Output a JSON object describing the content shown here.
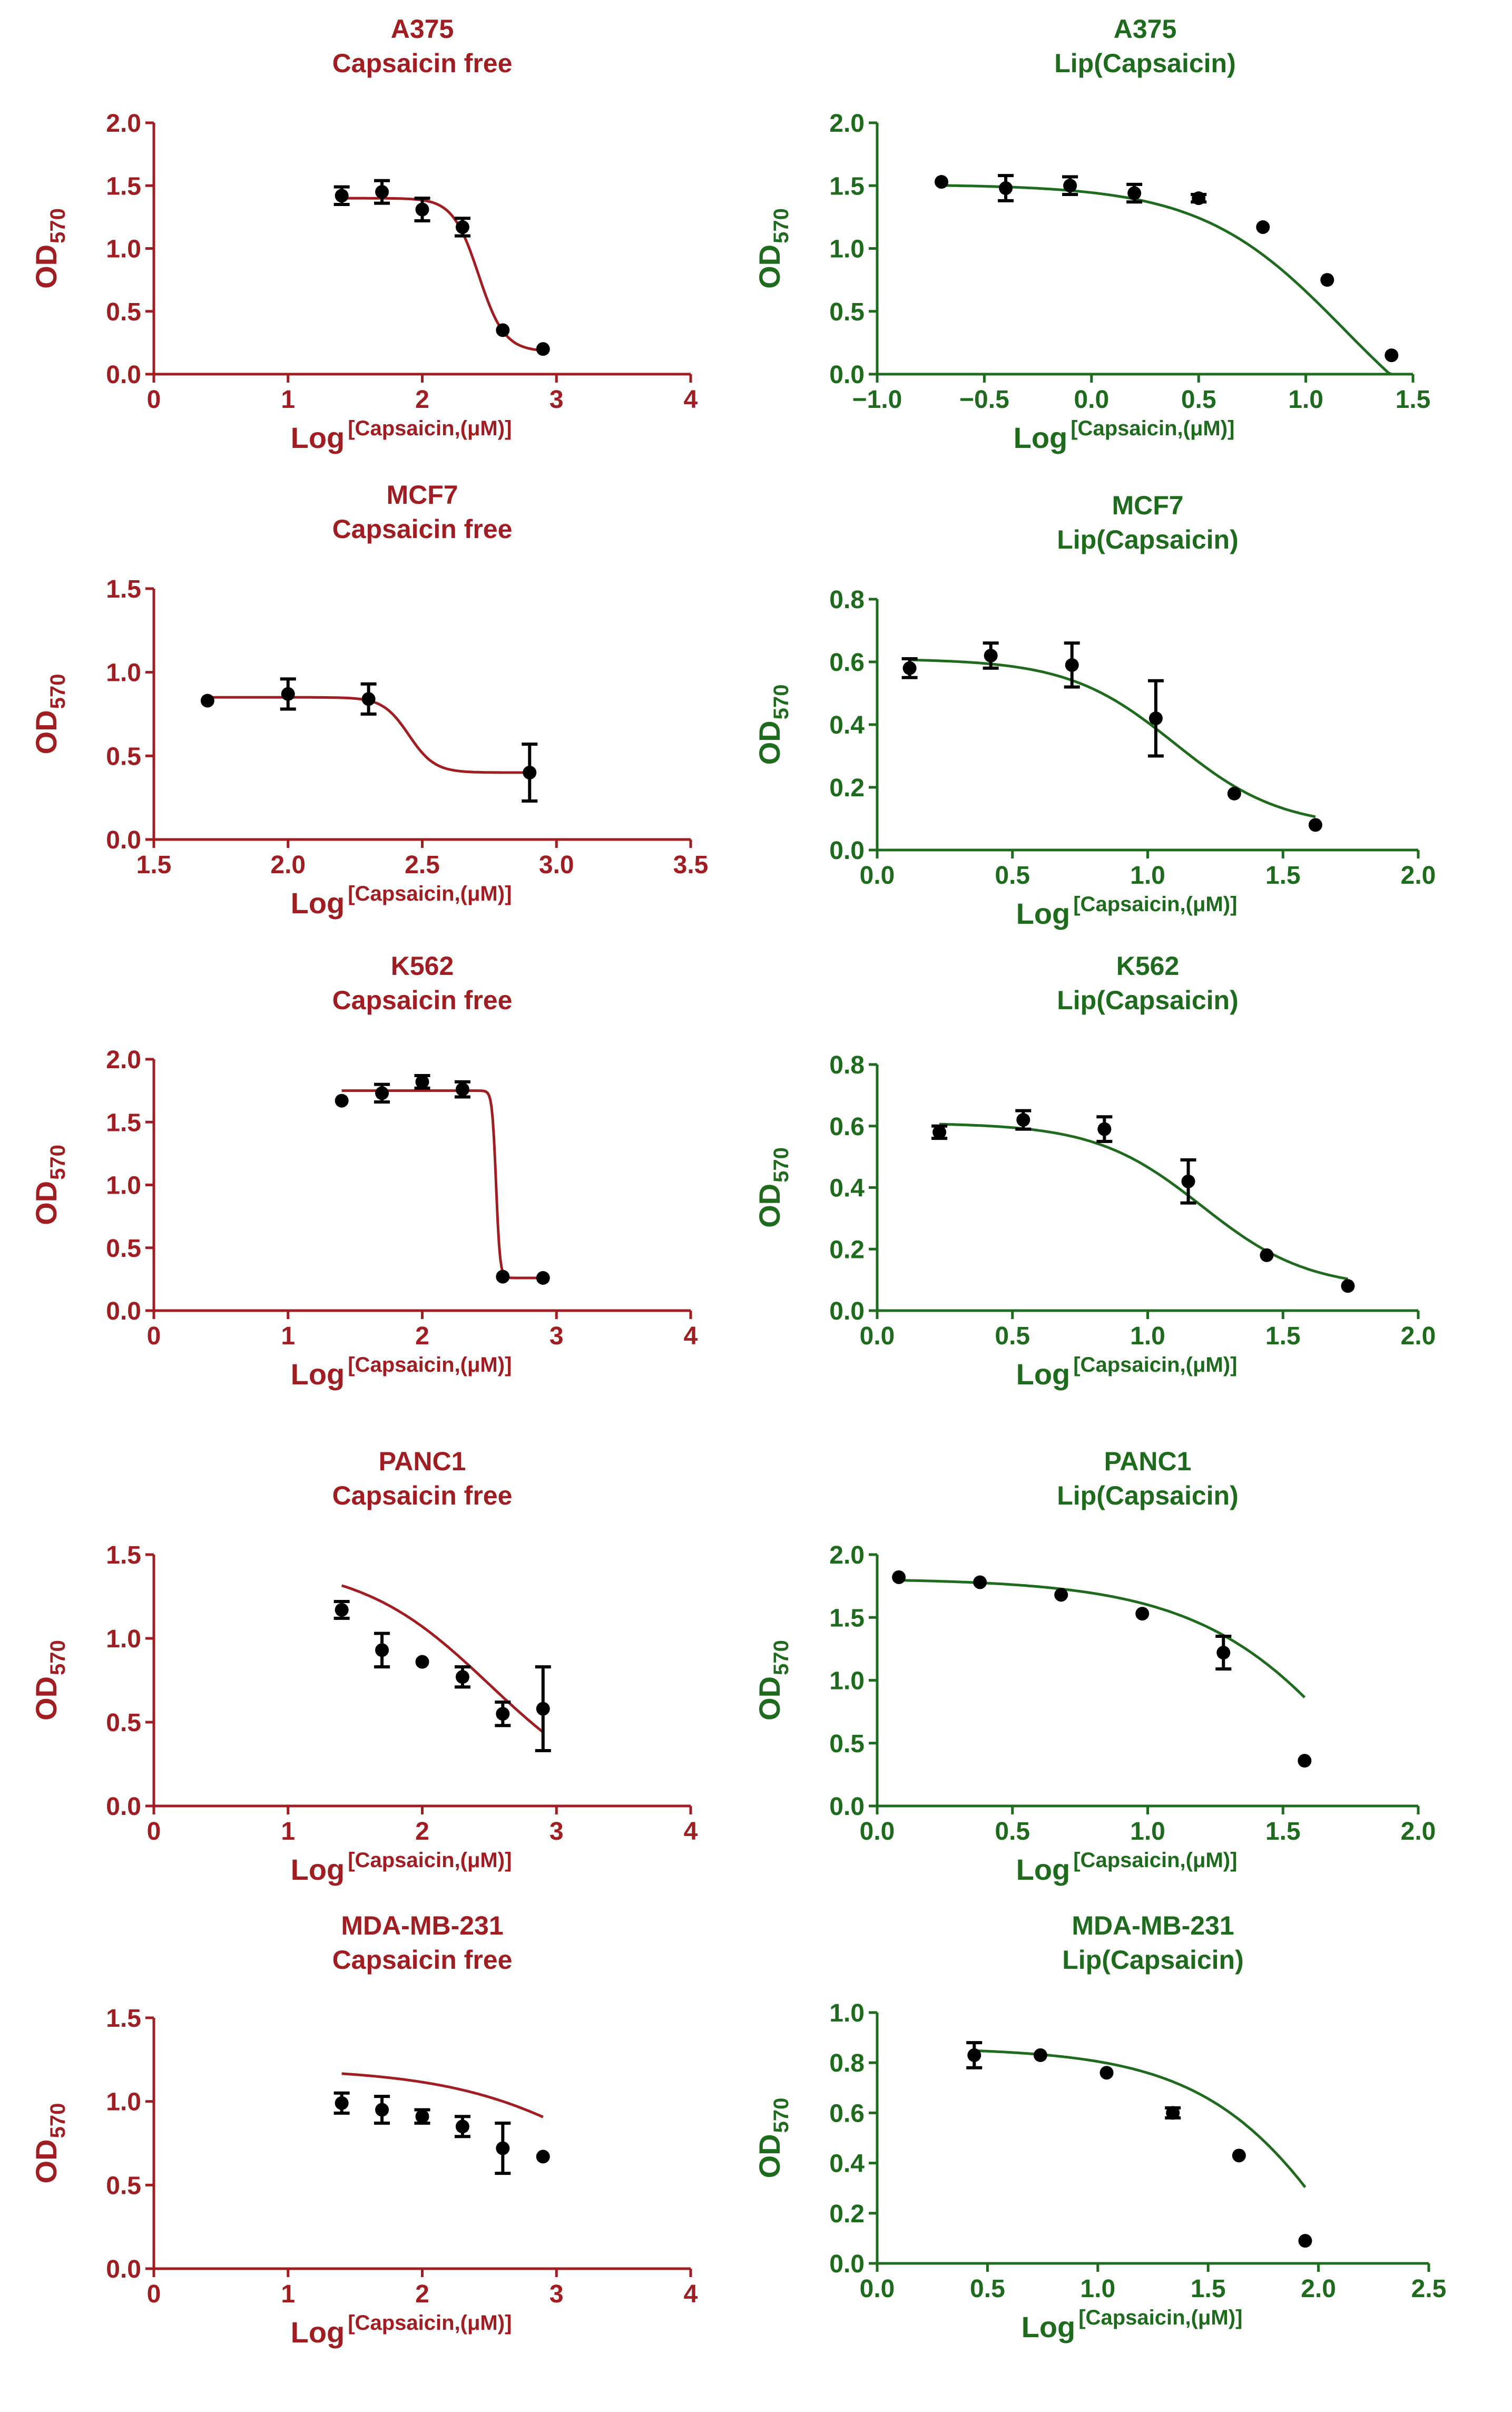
{
  "colors": {
    "free": "#a01d22",
    "lip": "#1e6b1e",
    "marker": "#000000"
  },
  "chart_data": [
    {
      "id": "a375-free",
      "type": "line",
      "title": [
        "A375",
        "Capsaicin free"
      ],
      "ylabel": {
        "main": "OD",
        "sub": "570"
      },
      "xlabel": {
        "main": "Log",
        "sup": "[Capsaicin,(μM)]"
      },
      "xlim": [
        0,
        4
      ],
      "ylim": [
        0,
        2
      ],
      "xticks": [
        0,
        1,
        2,
        3,
        4
      ],
      "xtick_labels": [
        "0",
        "1",
        "2",
        "3",
        "4"
      ],
      "yticks": [
        0,
        0.5,
        1,
        1.5,
        2
      ],
      "ytick_labels": [
        "0.0",
        "0.5",
        "1.0",
        "1.5",
        "2.0"
      ],
      "x": [
        1.4,
        1.7,
        2.0,
        2.3,
        2.6,
        2.9
      ],
      "y": [
        1.42,
        1.45,
        1.31,
        1.17,
        0.35,
        0.2
      ],
      "err": [
        0.07,
        0.09,
        0.09,
        0.07,
        0.02,
        0.02
      ],
      "fit": {
        "top": 1.4,
        "bottom": 0.18,
        "logec50": 2.42,
        "hill": -4.5,
        "xmin": 1.4,
        "xmax": 2.9
      }
    },
    {
      "id": "a375-lip",
      "type": "line",
      "title": [
        "A375",
        "Lip(Capsaicin)"
      ],
      "ylabel": {
        "main": "OD",
        "sub": "570"
      },
      "xlabel": {
        "main": "Log",
        "sup": "[Capsaicin,(μM)]"
      },
      "xlim": [
        -1,
        1.5
      ],
      "ylim": [
        0,
        2
      ],
      "xticks": [
        -1,
        -0.5,
        0,
        0.5,
        1,
        1.5
      ],
      "xtick_labels": [
        "−1.0",
        "−0.5",
        "0.0",
        "0.5",
        "1.0",
        "1.5"
      ],
      "yticks": [
        0,
        0.5,
        1,
        1.5,
        2
      ],
      "ytick_labels": [
        "0.0",
        "0.5",
        "1.0",
        "1.5",
        "2.0"
      ],
      "x": [
        -0.7,
        -0.4,
        -0.1,
        0.2,
        0.5,
        0.8,
        1.1,
        1.4
      ],
      "y": [
        1.53,
        1.48,
        1.5,
        1.44,
        1.4,
        1.17,
        0.75,
        0.15
      ],
      "err": [
        0.01,
        0.1,
        0.07,
        0.07,
        0.03,
        0.01,
        0.01,
        0.01
      ],
      "fit": {
        "top": 1.51,
        "bottom": -0.8,
        "logec50": 1.18,
        "hill": -1.3,
        "xmin": -0.7,
        "xmax": 1.4
      }
    },
    {
      "id": "mcf7-free",
      "type": "line",
      "title": [
        "MCF7",
        "Capsaicin free"
      ],
      "ylabel": {
        "main": "OD",
        "sub": "570"
      },
      "xlabel": {
        "main": "Log",
        "sup": "[Capsaicin,(μM)]"
      },
      "xlim": [
        1.5,
        3.5
      ],
      "ylim": [
        0,
        1.5
      ],
      "xticks": [
        1.5,
        2,
        2.5,
        3,
        3.5
      ],
      "xtick_labels": [
        "1.5",
        "2.0",
        "2.5",
        "3.0",
        "3.5"
      ],
      "yticks": [
        0,
        0.5,
        1,
        1.5
      ],
      "ytick_labels": [
        "0.0",
        "0.5",
        "1.0",
        "1.5"
      ],
      "x": [
        1.7,
        2.0,
        2.3,
        2.9
      ],
      "y": [
        0.83,
        0.87,
        0.84,
        0.4
      ],
      "err": [
        0.01,
        0.09,
        0.09,
        0.17
      ],
      "fit": {
        "top": 0.85,
        "bottom": 0.4,
        "logec50": 2.45,
        "hill": -9,
        "xmin": 1.7,
        "xmax": 2.9
      }
    },
    {
      "id": "mcf7-lip",
      "type": "line",
      "title": [
        "MCF7",
        "Lip(Capsaicin)"
      ],
      "ylabel": {
        "main": "OD",
        "sub": "570"
      },
      "xlabel": {
        "main": "Log",
        "sup": "[Capsaicin,(μM)]"
      },
      "xlim": [
        0,
        2
      ],
      "ylim": [
        0,
        0.8
      ],
      "xticks": [
        0,
        0.5,
        1,
        1.5,
        2
      ],
      "xtick_labels": [
        "0.0",
        "0.5",
        "1.0",
        "1.5",
        "2.0"
      ],
      "yticks": [
        0,
        0.2,
        0.4,
        0.6,
        0.8
      ],
      "ytick_labels": [
        "0.0",
        "0.2",
        "0.4",
        "0.6",
        "0.8"
      ],
      "x": [
        0.12,
        0.42,
        0.72,
        1.03,
        1.32,
        1.62
      ],
      "y": [
        0.58,
        0.62,
        0.59,
        0.42,
        0.18,
        0.08
      ],
      "err": [
        0.03,
        0.04,
        0.07,
        0.12,
        0.01,
        0.01
      ],
      "fit": {
        "top": 0.61,
        "bottom": 0.07,
        "logec50": 1.1,
        "hill": -2.2,
        "xmin": 0.12,
        "xmax": 1.62
      }
    },
    {
      "id": "k562-free",
      "type": "line",
      "title": [
        "K562",
        "Capsaicin free"
      ],
      "ylabel": {
        "main": "OD",
        "sub": "570"
      },
      "xlabel": {
        "main": "Log",
        "sup": "[Capsaicin,(μM)]"
      },
      "xlim": [
        0,
        4
      ],
      "ylim": [
        0,
        2
      ],
      "xticks": [
        0,
        1,
        2,
        3,
        4
      ],
      "xtick_labels": [
        "0",
        "1",
        "2",
        "3",
        "4"
      ],
      "yticks": [
        0,
        0.5,
        1,
        1.5,
        2
      ],
      "ytick_labels": [
        "0.0",
        "0.5",
        "1.0",
        "1.5",
        "2.0"
      ],
      "x": [
        1.4,
        1.7,
        2.0,
        2.3,
        2.6,
        2.9
      ],
      "y": [
        1.67,
        1.73,
        1.82,
        1.76,
        0.27,
        0.26
      ],
      "err": [
        0.01,
        0.07,
        0.05,
        0.06,
        0.01,
        0.01
      ],
      "fit": {
        "top": 1.75,
        "bottom": 0.26,
        "logec50": 2.55,
        "hill": -30,
        "xmin": 1.4,
        "xmax": 2.9
      }
    },
    {
      "id": "k562-lip",
      "type": "line",
      "title": [
        "K562",
        "Lip(Capsaicin)"
      ],
      "ylabel": {
        "main": "OD",
        "sub": "570"
      },
      "xlabel": {
        "main": "Log",
        "sup": "[Capsaicin,(μM)]"
      },
      "xlim": [
        0,
        2
      ],
      "ylim": [
        0,
        0.8
      ],
      "xticks": [
        0,
        0.5,
        1,
        1.5,
        2
      ],
      "xtick_labels": [
        "0.0",
        "0.5",
        "1.0",
        "1.5",
        "2.0"
      ],
      "yticks": [
        0,
        0.2,
        0.4,
        0.6,
        0.8
      ],
      "ytick_labels": [
        "0.0",
        "0.2",
        "0.4",
        "0.6",
        "0.8"
      ],
      "x": [
        0.23,
        0.54,
        0.84,
        1.15,
        1.44,
        1.74
      ],
      "y": [
        0.58,
        0.62,
        0.59,
        0.42,
        0.18,
        0.08
      ],
      "err": [
        0.02,
        0.03,
        0.04,
        0.07,
        0.01,
        0.01
      ],
      "fit": {
        "top": 0.61,
        "bottom": 0.07,
        "logec50": 1.2,
        "hill": -2.2,
        "xmin": 0.23,
        "xmax": 1.74
      }
    },
    {
      "id": "panc1-free",
      "type": "line",
      "title": [
        "PANC1",
        "Capsaicin free"
      ],
      "ylabel": {
        "main": "OD",
        "sub": "570"
      },
      "xlabel": {
        "main": "Log",
        "sup": "[Capsaicin,(μM)]"
      },
      "xlim": [
        0,
        4
      ],
      "ylim": [
        0,
        1.5
      ],
      "xticks": [
        0,
        1,
        2,
        3,
        4
      ],
      "xtick_labels": [
        "0",
        "1",
        "2",
        "3",
        "4"
      ],
      "yticks": [
        0,
        0.5,
        1,
        1.5
      ],
      "ytick_labels": [
        "0.0",
        "0.5",
        "1.0",
        "1.5"
      ],
      "x": [
        1.4,
        1.7,
        2.0,
        2.3,
        2.6,
        2.9
      ],
      "y": [
        1.17,
        0.93,
        0.86,
        0.77,
        0.55,
        0.58
      ],
      "err": [
        0.05,
        0.1,
        0.02,
        0.06,
        0.07,
        0.25
      ],
      "fit": {
        "top": 1.45,
        "bottom": 0.0,
        "logec50": 2.5,
        "hill": -0.9,
        "xmin": 1.4,
        "xmax": 2.9
      }
    },
    {
      "id": "panc1-lip",
      "type": "line",
      "title": [
        "PANC1",
        "Lip(Capsaicin)"
      ],
      "ylabel": {
        "main": "OD",
        "sub": "570"
      },
      "xlabel": {
        "main": "Log",
        "sup": "[Capsaicin,(μM)]"
      },
      "xlim": [
        0,
        2
      ],
      "ylim": [
        0,
        2
      ],
      "xticks": [
        0,
        0.5,
        1,
        1.5,
        2
      ],
      "xtick_labels": [
        "0.0",
        "0.5",
        "1.0",
        "1.5",
        "2.0"
      ],
      "yticks": [
        0,
        0.5,
        1,
        1.5,
        2
      ],
      "ytick_labels": [
        "0.0",
        "0.5",
        "1.0",
        "1.5",
        "2.0"
      ],
      "x": [
        0.08,
        0.38,
        0.68,
        0.98,
        1.28,
        1.58
      ],
      "y": [
        1.82,
        1.78,
        1.68,
        1.53,
        1.22,
        0.36
      ],
      "err": [
        0.01,
        0.01,
        0.01,
        0.01,
        0.13,
        0.01
      ],
      "fit": {
        "top": 1.81,
        "bottom": -2.0,
        "logec50": 1.95,
        "hill": -1.3,
        "xmin": 0.08,
        "xmax": 1.58
      }
    },
    {
      "id": "mdamb231-free",
      "type": "line",
      "title": [
        "MDA-MB-231",
        "Capsaicin free"
      ],
      "ylabel": {
        "main": "OD",
        "sub": "570"
      },
      "xlabel": {
        "main": "Log",
        "sup": "[Capsaicin,(μM)]"
      },
      "xlim": [
        0,
        4
      ],
      "ylim": [
        0,
        1.5
      ],
      "xticks": [
        0,
        1,
        2,
        3,
        4
      ],
      "xtick_labels": [
        "0",
        "1",
        "2",
        "3",
        "4"
      ],
      "yticks": [
        0,
        0.5,
        1,
        1.5
      ],
      "ytick_labels": [
        "0.0",
        "0.5",
        "1.0",
        "1.5"
      ],
      "x": [
        1.4,
        1.7,
        2.0,
        2.3,
        2.6,
        2.9
      ],
      "y": [
        0.99,
        0.95,
        0.91,
        0.85,
        0.72,
        0.67
      ],
      "err": [
        0.06,
        0.08,
        0.04,
        0.06,
        0.15,
        0.01
      ],
      "fit": {
        "top": 1.2,
        "bottom": 0.0,
        "logec50": 3.6,
        "hill": -0.7,
        "xmin": 1.4,
        "xmax": 2.9
      }
    },
    {
      "id": "mdamb231-lip",
      "type": "line",
      "title": [
        "MDA-MB-231",
        "Lip(Capsaicin)"
      ],
      "ylabel": {
        "main": "OD",
        "sub": "570"
      },
      "xlabel": {
        "main": "Log",
        "sup": "[Capsaicin,(μM)]"
      },
      "xlim": [
        0,
        2.5
      ],
      "ylim": [
        0,
        1
      ],
      "xticks": [
        0,
        0.5,
        1,
        1.5,
        2,
        2.5
      ],
      "xtick_labels": [
        "0.0",
        "0.5",
        "1.0",
        "1.5",
        "2.0",
        "2.5"
      ],
      "yticks": [
        0,
        0.2,
        0.4,
        0.6,
        0.8,
        1
      ],
      "ytick_labels": [
        "0.0",
        "0.2",
        "0.4",
        "0.6",
        "0.8",
        "1.0"
      ],
      "x": [
        0.44,
        0.74,
        1.04,
        1.34,
        1.64,
        1.94
      ],
      "y": [
        0.83,
        0.83,
        0.76,
        0.6,
        0.43,
        0.09
      ],
      "err": [
        0.05,
        0.01,
        0.01,
        0.02,
        0.01,
        0.01
      ],
      "fit": {
        "top": 0.86,
        "bottom": -1.2,
        "logec50": 2.3,
        "hill": -1.2,
        "xmin": 0.44,
        "xmax": 1.94
      }
    }
  ]
}
